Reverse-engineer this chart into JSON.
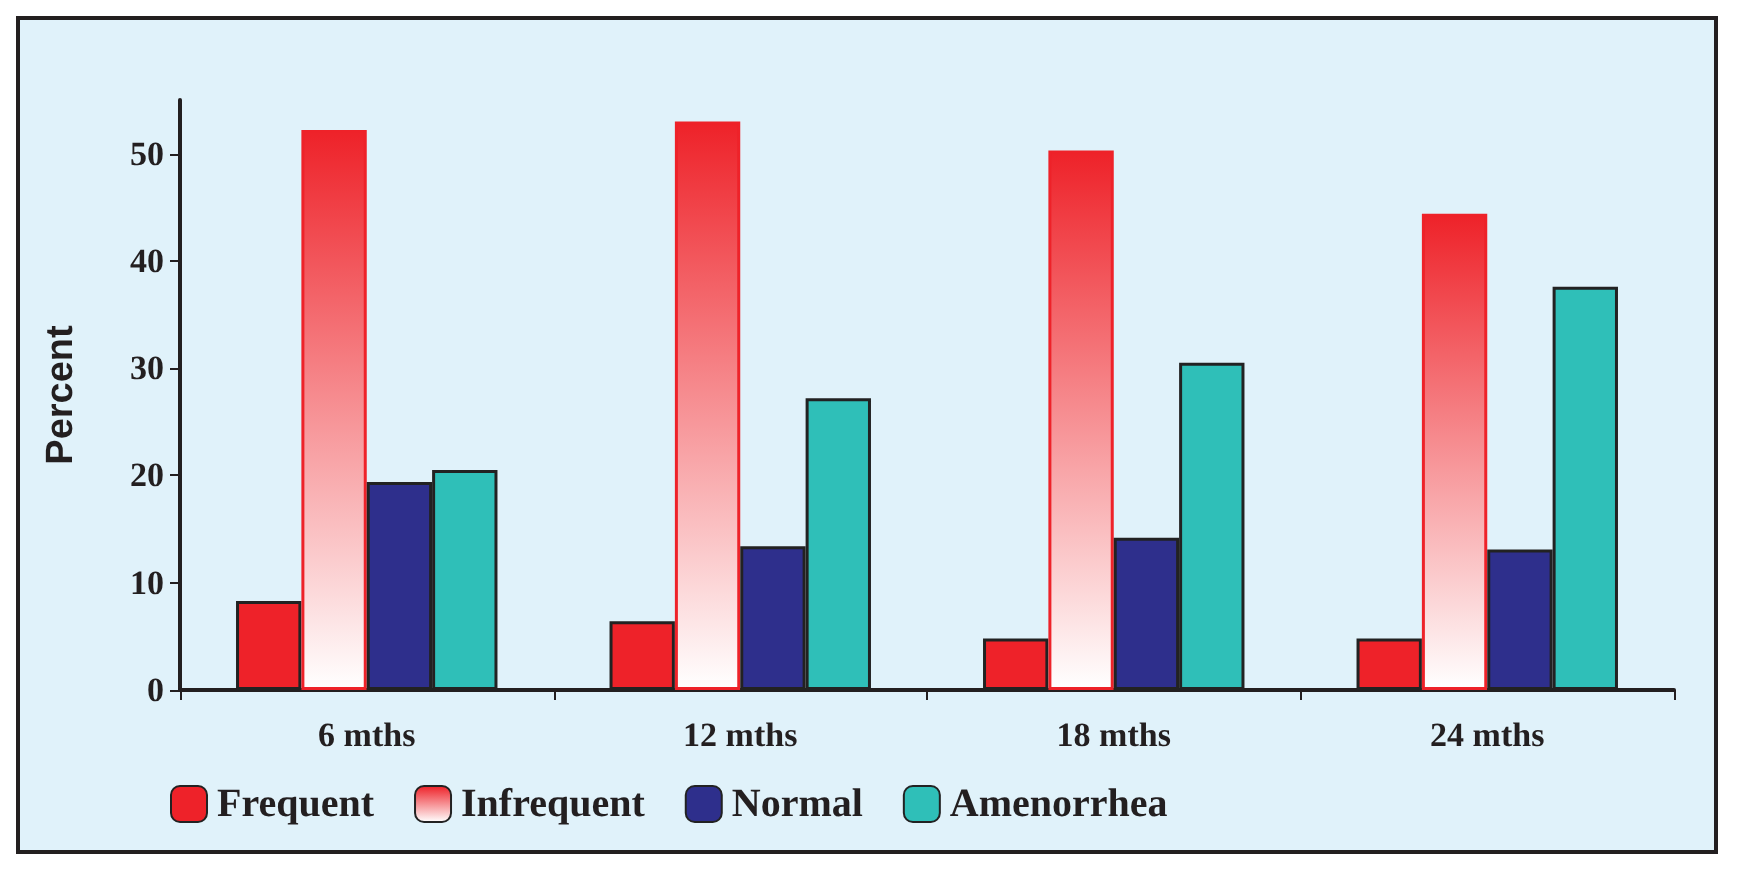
{
  "chart_data": {
    "type": "bar",
    "ylabel": "Percent",
    "categories": [
      "6 mths",
      "12 mths",
      "18 mths",
      "24 mths"
    ],
    "series": [
      {
        "name": "Frequent",
        "color": "#ee2229",
        "values": [
          8.3,
          6.4,
          4.8,
          4.8
        ]
      },
      {
        "name": "Infrequent",
        "color": "#ee2229",
        "values": [
          52.2,
          53.0,
          50.3,
          44.4
        ]
      },
      {
        "name": "Normal",
        "color": "#2e2f8c",
        "values": [
          19.4,
          13.4,
          14.2,
          13.1
        ]
      },
      {
        "name": "Amenorrhea",
        "color": "#2fbfb8",
        "values": [
          20.5,
          27.2,
          30.5,
          37.6
        ]
      }
    ],
    "ylim": [
      0,
      55
    ],
    "yticks": [
      0,
      10,
      20,
      30,
      40,
      50
    ],
    "grid": false,
    "legend": "bottom"
  }
}
